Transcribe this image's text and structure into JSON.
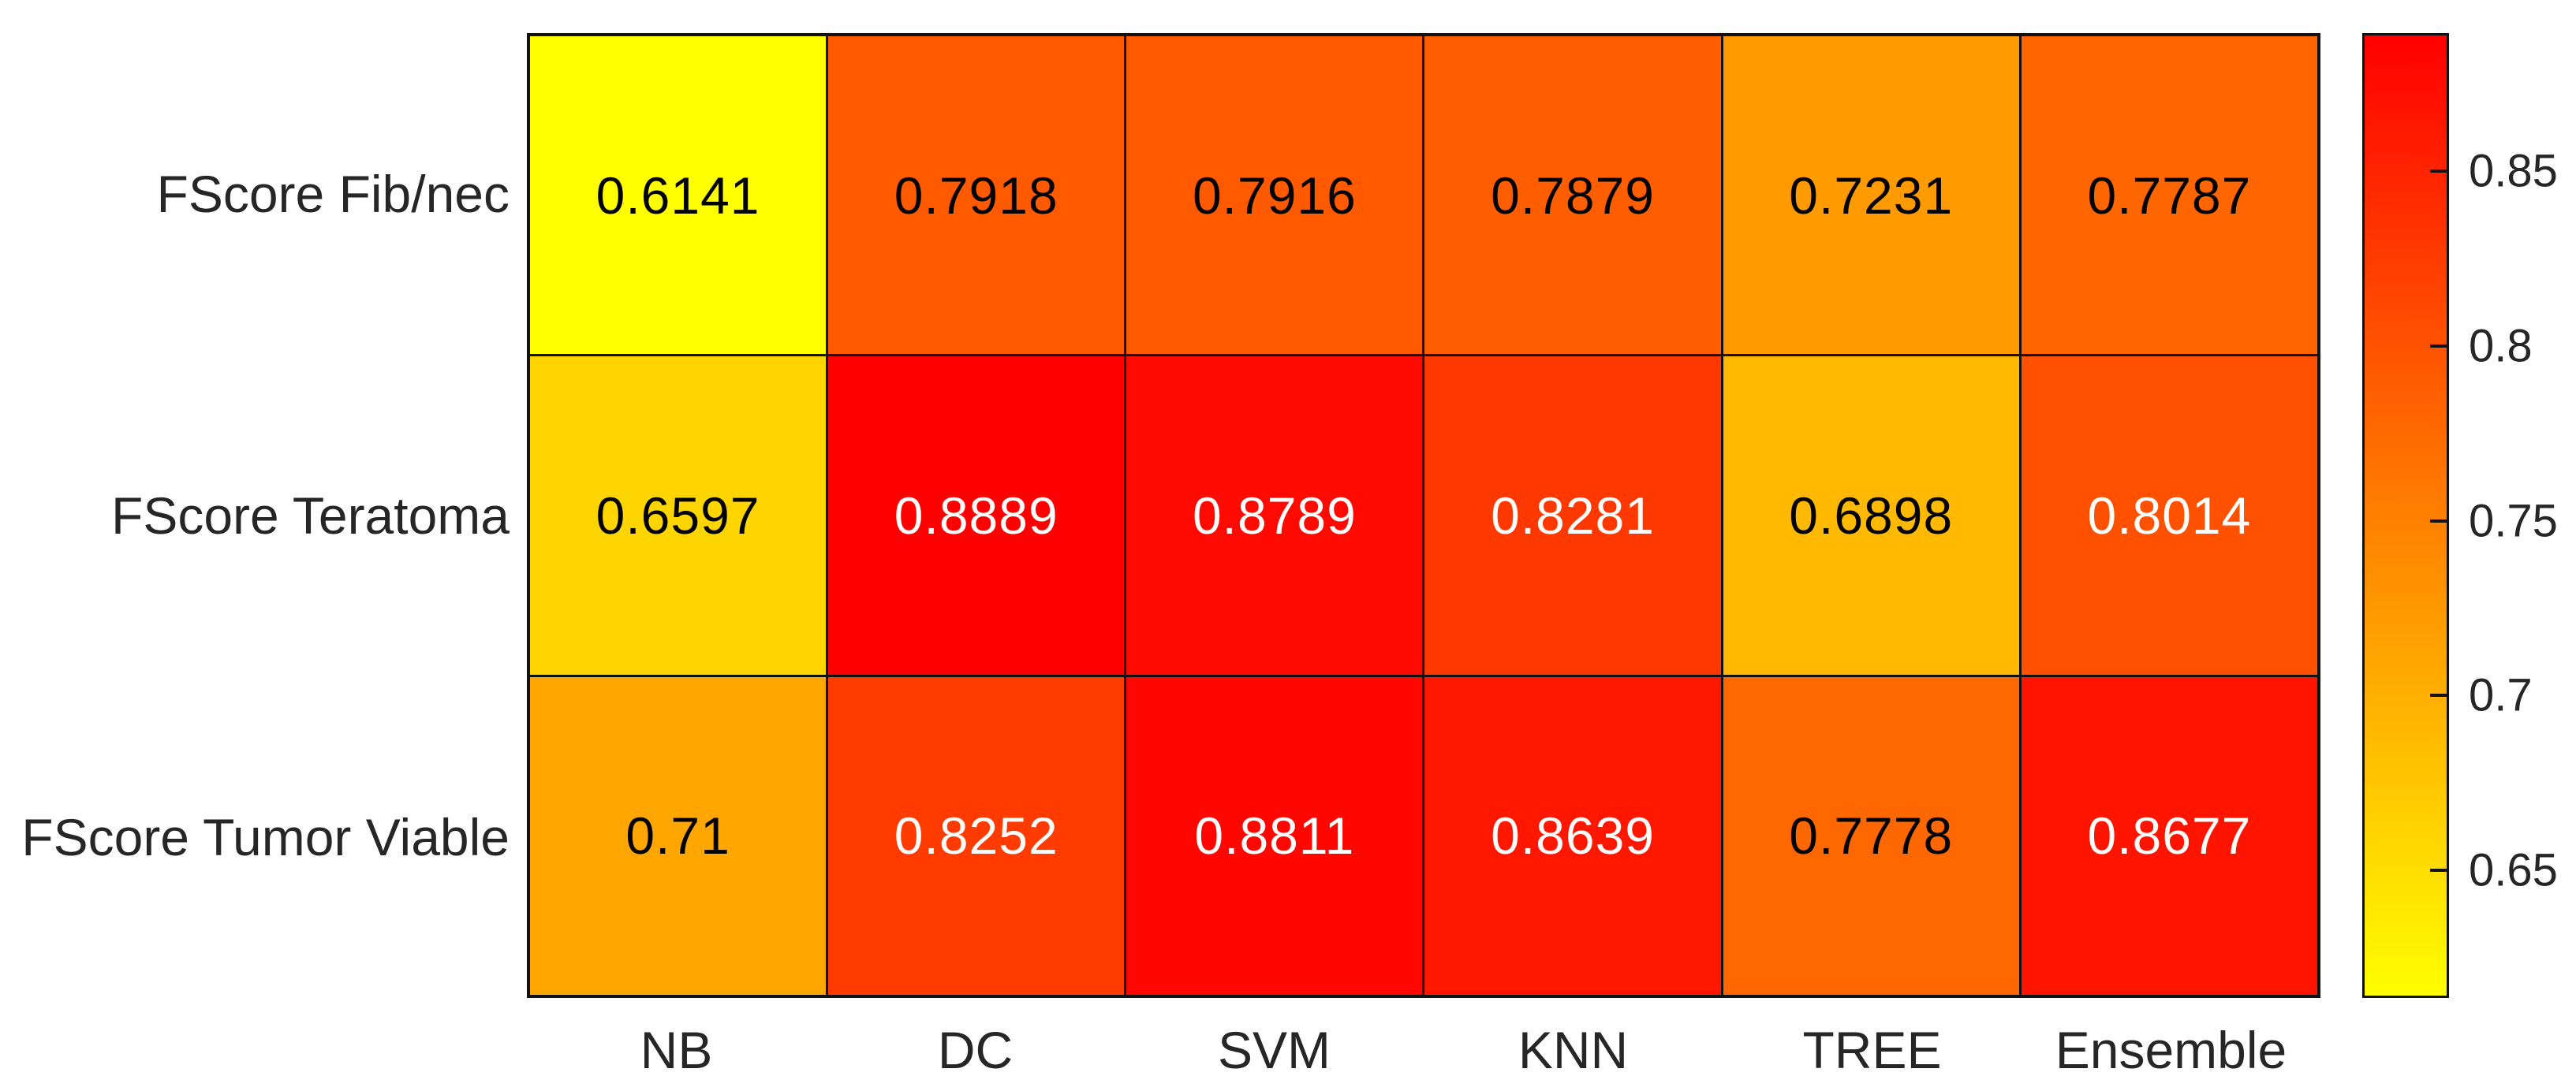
{
  "figure": {
    "background": "#ffffff",
    "grid_color": "#111111",
    "axis_text_color": "#262626"
  },
  "chart_data": {
    "type": "heatmap",
    "title": "",
    "columns": [
      "NB",
      "DC",
      "SVM",
      "KNN",
      "TREE",
      "Ensemble"
    ],
    "rows": [
      "FScore Fib/nec",
      "FScore Teratoma",
      "FScore Tumor Viable"
    ],
    "values": [
      [
        0.6141,
        0.7918,
        0.7916,
        0.7879,
        0.7231,
        0.7787
      ],
      [
        0.6597,
        0.8889,
        0.8789,
        0.8281,
        0.6898,
        0.8014
      ],
      [
        0.71,
        0.8252,
        0.8811,
        0.8639,
        0.7778,
        0.8677
      ]
    ],
    "value_labels": [
      [
        "0.6141",
        "0.7918",
        "0.7916",
        "0.7879",
        "0.7231",
        "0.7787"
      ],
      [
        "0.6597",
        "0.8889",
        "0.8789",
        "0.8281",
        "0.6898",
        "0.8014"
      ],
      [
        "0.71",
        "0.8252",
        "0.8811",
        "0.8639",
        "0.7778",
        "0.8677"
      ]
    ],
    "colormap": {
      "name": "autumn-reversed",
      "min_color": "#FFFF00",
      "max_color": "#FF0000",
      "cmin": 0.6141,
      "cmax": 0.8889
    },
    "cell_text_color_dark_cells": "#ffffff",
    "cell_text_color_light_cells": "#000000",
    "colorbar": {
      "tick_labels": [
        "0.85",
        "0.8",
        "0.75",
        "0.7",
        "0.65"
      ],
      "ticks": [
        0.85,
        0.8,
        0.75,
        0.7,
        0.65
      ],
      "position": "right",
      "gradient_top_to_bottom": [
        "#FF0000",
        "#FFFF00"
      ]
    },
    "grid": true,
    "legend_position": "none"
  }
}
